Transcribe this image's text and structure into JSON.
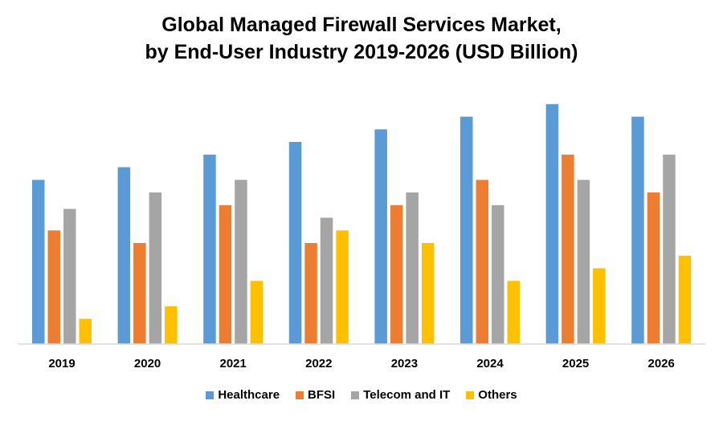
{
  "chart_data": {
    "type": "bar",
    "title_line1": "Global Managed Firewall Services Market,",
    "title_line2": "by End-User Industry 2019-2026 (USD Billion)",
    "xlabel": "",
    "ylabel": "",
    "y_axis_visible": false,
    "grid": false,
    "ylim": [
      0,
      20
    ],
    "legend_position": "bottom",
    "categories": [
      "2019",
      "2020",
      "2021",
      "2022",
      "2023",
      "2024",
      "2025",
      "2026"
    ],
    "series": [
      {
        "name": "Healthcare",
        "color": "#5B9BD5",
        "values": [
          13,
          14,
          15,
          16,
          17,
          18,
          19,
          18
        ]
      },
      {
        "name": "BFSI",
        "color": "#ED7D31",
        "values": [
          9,
          8,
          11,
          8,
          11,
          13,
          15,
          12
        ]
      },
      {
        "name": "Telecom and IT",
        "color": "#A5A5A5",
        "values": [
          10.7,
          12,
          13,
          10,
          12,
          11,
          13,
          15
        ]
      },
      {
        "name": "Others",
        "color": "#FFC000",
        "values": [
          2,
          3,
          5,
          9,
          8,
          5,
          6,
          7
        ]
      }
    ]
  }
}
